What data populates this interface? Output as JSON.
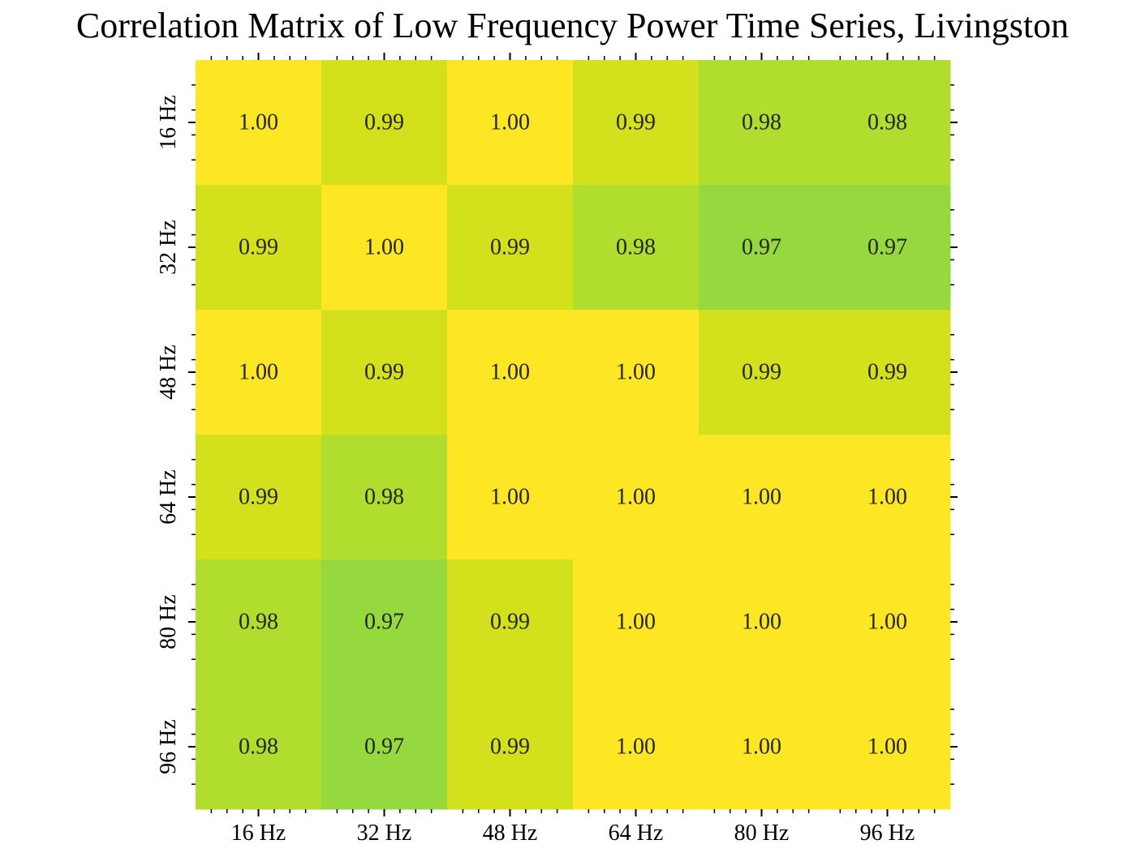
{
  "chart_data": {
    "type": "heatmap",
    "title": "Correlation Matrix of Low Frequency Power Time Series, Livingston",
    "x_categories": [
      "16 Hz",
      "32 Hz",
      "48 Hz",
      "64 Hz",
      "80 Hz",
      "96 Hz"
    ],
    "y_categories": [
      "16 Hz",
      "32 Hz",
      "48 Hz",
      "64 Hz",
      "80 Hz",
      "96 Hz"
    ],
    "values": [
      [
        1.0,
        0.99,
        1.0,
        0.99,
        0.98,
        0.98
      ],
      [
        0.99,
        1.0,
        0.99,
        0.98,
        0.97,
        0.97
      ],
      [
        1.0,
        0.99,
        1.0,
        1.0,
        0.99,
        0.99
      ],
      [
        0.99,
        0.98,
        1.0,
        1.0,
        1.0,
        1.0
      ],
      [
        0.98,
        0.97,
        0.99,
        1.0,
        1.0,
        1.0
      ],
      [
        0.98,
        0.97,
        0.99,
        1.0,
        1.0,
        1.0
      ]
    ],
    "display_values": [
      [
        "1.00",
        "0.99",
        "1.00",
        "0.99",
        "0.98",
        "0.98"
      ],
      [
        "0.99",
        "1.00",
        "0.99",
        "0.98",
        "0.97",
        "0.97"
      ],
      [
        "1.00",
        "0.99",
        "1.00",
        "1.00",
        "0.99",
        "0.99"
      ],
      [
        "0.99",
        "0.98",
        "1.00",
        "1.00",
        "1.00",
        "1.00"
      ],
      [
        "0.98",
        "0.97",
        "0.99",
        "1.00",
        "1.00",
        "1.00"
      ],
      [
        "0.98",
        "0.97",
        "0.99",
        "1.00",
        "1.00",
        "1.00"
      ]
    ],
    "colormap": "viridis",
    "color_min": 0.962,
    "color_max": 1.0,
    "xlabel": "",
    "ylabel": "",
    "grid": false,
    "legend": "none"
  }
}
